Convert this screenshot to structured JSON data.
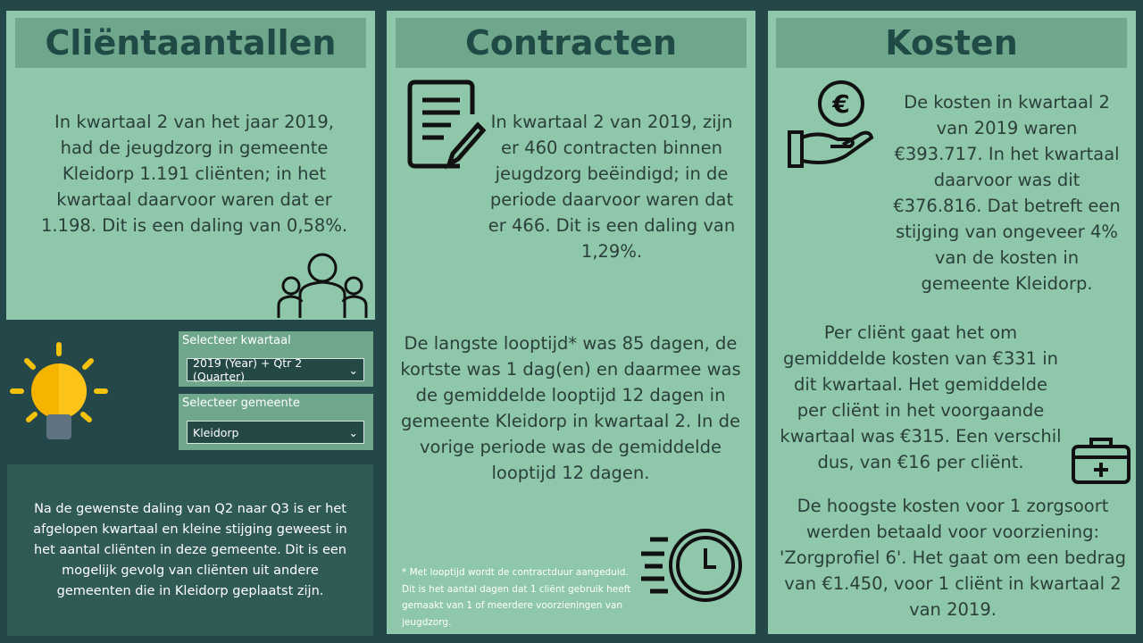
{
  "clienten": {
    "title": "Cliëntaantallen",
    "text": "In kwartaal 2 van het jaar 2019, had de jeugdzorg in gemeente Kleidorp 1.191 cliënten; in het kwartaal daarvoor waren dat er 1.198. Dit is een daling van 0,58%."
  },
  "filters": {
    "quarter_label": "Selecteer kwartaal",
    "quarter_value": "2019 (Year) + Qtr 2 (Quarter)",
    "municipality_label": "Selecteer gemeente",
    "municipality_value": "Kleidorp"
  },
  "insight": "Na de gewenste daling van Q2 naar Q3 is er het afgelopen kwartaal en kleine stijging geweest in het aantal cliënten in deze gemeente. Dit is een mogelijk gevolg van cliënten uit andere gemeenten die in Kleidorp geplaatst zijn.",
  "contracten": {
    "title": "Contracten",
    "text1": "In kwartaal 2 van 2019, zijn er 460 contracten binnen jeugdzorg beëindigd; in de periode daarvoor waren dat er 466. Dit is een daling van 1,29%.",
    "text2": "De langste looptijd* was 85 dagen, de kortste was 1 dag(en) en daarmee was de gemiddelde looptijd 12 dagen in gemeente Kleidorp in kwartaal 2. In de vorige periode was de gemiddelde looptijd 12 dagen.",
    "footnote": "* Met looptijd wordt de contractduur aangeduid. Dit is het aantal dagen dat 1 cliënt gebruik heeft gemaakt van 1 of meerdere voorzieningen van jeugdzorg."
  },
  "kosten": {
    "title": "Kosten",
    "text1": "De kosten in kwartaal 2 van 2019 waren €393.717. In het kwartaal daarvoor was dit €376.816. Dat betreft een stijging van ongeveer 4% van de kosten in gemeente Kleidorp.",
    "text2": "Per cliënt gaat het om gemiddelde kosten van €331 in dit kwartaal. Het gemiddelde per cliënt in het voorgaande kwartaal was €315. Een verschil dus, van €16 per cliënt.",
    "text3": "De hoogste kosten voor 1 zorgsoort werden betaald voor voorziening: 'Zorgprofiel 6'. Het gaat om een bedrag van €1.450, voor 1 cliënt in kwartaal 2 van 2019."
  }
}
